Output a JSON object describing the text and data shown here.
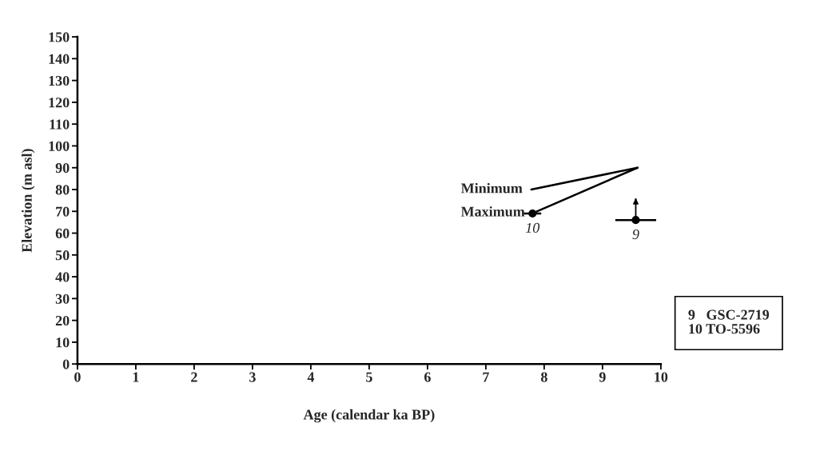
{
  "chart_data": {
    "type": "line",
    "xlabel": "Age (calendar ka BP)",
    "ylabel": "Elevation (m asl)",
    "xlim": [
      0,
      10
    ],
    "xticks": [
      0,
      1,
      2,
      3,
      4,
      5,
      6,
      7,
      8,
      9,
      10
    ],
    "ylim": [
      0,
      150
    ],
    "yticks": [
      0,
      10,
      20,
      30,
      40,
      50,
      60,
      70,
      80,
      90,
      100,
      110,
      120,
      130,
      140,
      150
    ],
    "grid": false,
    "legend": false,
    "marker": "none",
    "line_style": "solid",
    "series": [
      {
        "name": "Minimum",
        "color": "#000000",
        "x": [
          7.78,
          9.6
        ],
        "values": [
          80,
          90
        ]
      },
      {
        "name": "Maximum",
        "color": "#000000",
        "x": [
          7.82,
          9.6
        ],
        "values": [
          69.3,
          90
        ]
      },
      {
        "type": "scatter",
        "color": "#000000",
        "marker": "circle",
        "x": [
          7.8,
          9.57
        ],
        "values": [
          69,
          66
        ],
        "xerrors": [
          0.15,
          0.35
        ],
        "errors": [
          null,
          [
            66,
            76
          ]
        ]
      }
    ],
    "annotations": [
      {
        "text": "10",
        "x": 7.8,
        "y": 69
      },
      {
        "text": "9",
        "x": 9.57,
        "y": 66
      },
      "9   GSC-2719",
      "10 TO-5596"
    ]
  }
}
